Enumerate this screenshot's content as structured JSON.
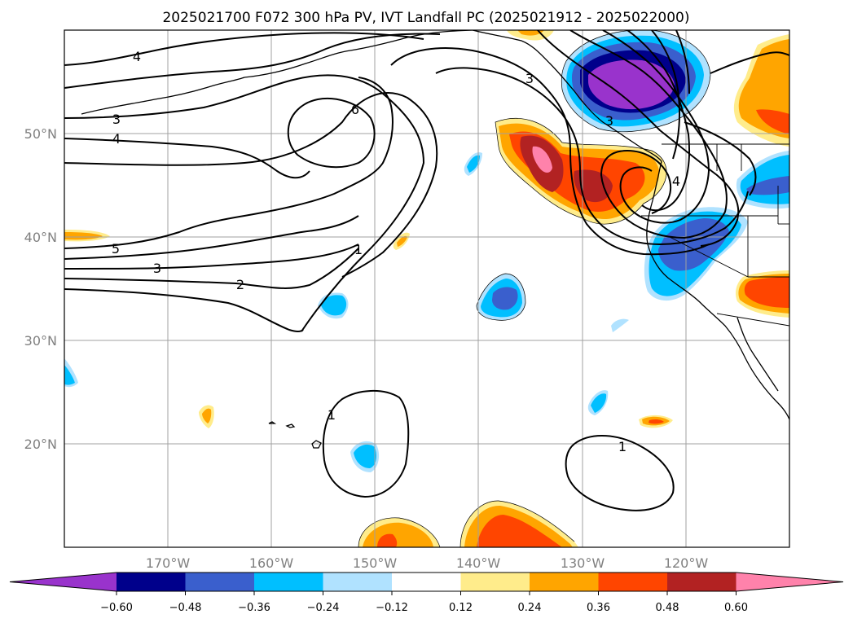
{
  "title": "2025021700 F072 300 hPa PV, IVT Landfall PC (2025021912 - 2025022000)",
  "map": {
    "lon_labels": [
      "170°W",
      "160°W",
      "150°W",
      "140°W",
      "130°W",
      "120°W"
    ],
    "lat_labels": [
      "50°N",
      "40°N",
      "30°N",
      "20°N"
    ],
    "contour_labels": [
      "4",
      "3",
      "4",
      "6",
      "3",
      "5",
      "3",
      "2",
      "1",
      "1",
      "1",
      "4",
      "3"
    ]
  },
  "colorbar": {
    "ticks": [
      "−0.60",
      "−0.48",
      "−0.36",
      "−0.24",
      "−0.12",
      "0.12",
      "0.24",
      "0.36",
      "0.48",
      "0.60"
    ],
    "colors": [
      "#9933cc",
      "#00008b",
      "#3a5fcd",
      "#00bfff",
      "#b0e2ff",
      "#ffffff",
      "#ffec8b",
      "#ffa500",
      "#ff4500",
      "#b22222",
      "#ff82ab"
    ]
  },
  "palette": {
    "purple": "#9933cc",
    "navy": "#00008b",
    "blue": "#3a5fcd",
    "cyan": "#00bfff",
    "lightblue": "#b0e2ff",
    "yellow": "#ffec8b",
    "orange": "#ffa500",
    "redorange": "#ff4500",
    "firebrick": "#b22222",
    "pink": "#ff82ab"
  }
}
